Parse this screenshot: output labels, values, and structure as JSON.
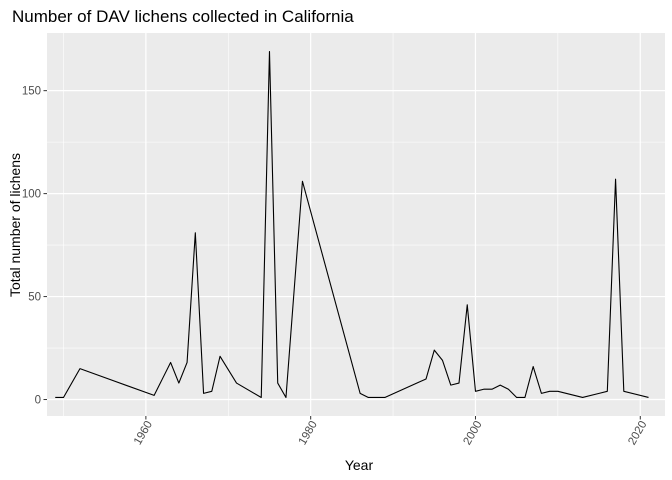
{
  "chart_data": {
    "type": "line",
    "title": "Number of DAV lichens collected in California",
    "xlabel": "Year",
    "ylabel": "Total number of lichens",
    "xlim": [
      1948,
      2023
    ],
    "ylim": [
      -8,
      178
    ],
    "x_ticks": [
      1960,
      1980,
      2000,
      2020
    ],
    "x_minor_ticks": [
      1950,
      1970,
      1990,
      2010
    ],
    "y_ticks": [
      0,
      50,
      100,
      150
    ],
    "y_minor_ticks": [
      25,
      75,
      125
    ],
    "grid": true,
    "legend": "none",
    "colors": {
      "panel": "#ebebeb",
      "grid": "#ffffff",
      "line": "#000000",
      "tick_text": "#4d4d4d",
      "tick_mark": "#333333"
    },
    "series": [
      {
        "x": [
          1949,
          1950,
          1952,
          1961,
          1962,
          1963,
          1964,
          1965,
          1966,
          1967,
          1968,
          1969,
          1971,
          1974,
          1975,
          1976,
          1977,
          1979,
          1986,
          1987,
          1989,
          1994,
          1995,
          1996,
          1997,
          1998,
          1999,
          2000,
          2001,
          2002,
          2003,
          2004,
          2005,
          2006,
          2007,
          2008,
          2009,
          2010,
          2013,
          2015,
          2016,
          2017,
          2018,
          2021
        ],
        "y": [
          1,
          1,
          15,
          2,
          10,
          18,
          8,
          18,
          81,
          3,
          4,
          21,
          8,
          1,
          169,
          8,
          1,
          106,
          3,
          1,
          1,
          10,
          24,
          19,
          7,
          8,
          46,
          4,
          5,
          5,
          7,
          5,
          1,
          1,
          16,
          3,
          4,
          4,
          1,
          3,
          4,
          107,
          4,
          1
        ]
      }
    ]
  }
}
